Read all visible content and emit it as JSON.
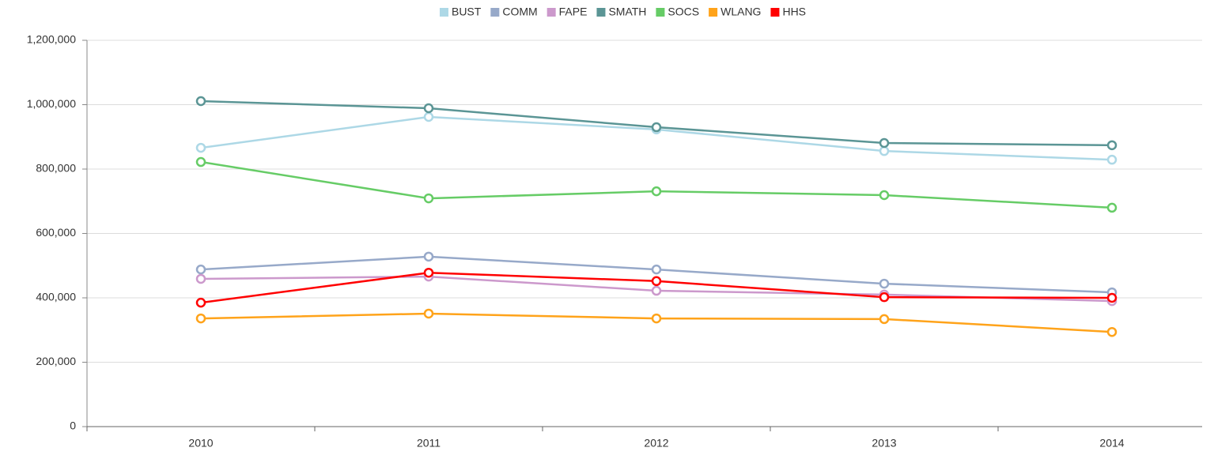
{
  "chart_data": {
    "type": "line",
    "categories": [
      "2010",
      "2011",
      "2012",
      "2013",
      "2014"
    ],
    "series": [
      {
        "name": "BUST",
        "color": "#add8e6",
        "values": [
          866000,
          962000,
          923000,
          856000,
          829000
        ]
      },
      {
        "name": "COMM",
        "color": "#97a9c9",
        "values": [
          488000,
          528000,
          488000,
          444000,
          417000
        ]
      },
      {
        "name": "FAPE",
        "color": "#cc99cc",
        "values": [
          459000,
          466000,
          422000,
          410000,
          390000
        ]
      },
      {
        "name": "SMATH",
        "color": "#5b9595",
        "values": [
          1011000,
          989000,
          930000,
          881000,
          874000
        ]
      },
      {
        "name": "SOCS",
        "color": "#66cc66",
        "values": [
          822000,
          709000,
          731000,
          719000,
          680000
        ]
      },
      {
        "name": "WLANG",
        "color": "#ffa31a",
        "values": [
          336000,
          351000,
          336000,
          334000,
          294000
        ]
      },
      {
        "name": "HHS",
        "color": "#ff0000",
        "values": [
          385000,
          478000,
          452000,
          402000,
          400000
        ]
      }
    ],
    "ylim": [
      0,
      1200000
    ],
    "yticks": [
      0,
      {
        "value": 200000,
        "label": "200,000"
      },
      {
        "value": 400000,
        "label": "400,000"
      },
      {
        "value": 600000,
        "label": "600,000"
      },
      {
        "value": 800000,
        "label": "800,000"
      },
      {
        "value": 1000000,
        "label": "1,000,000"
      },
      {
        "value": 1200000,
        "label": "1,200,000"
      }
    ],
    "grid": true
  }
}
